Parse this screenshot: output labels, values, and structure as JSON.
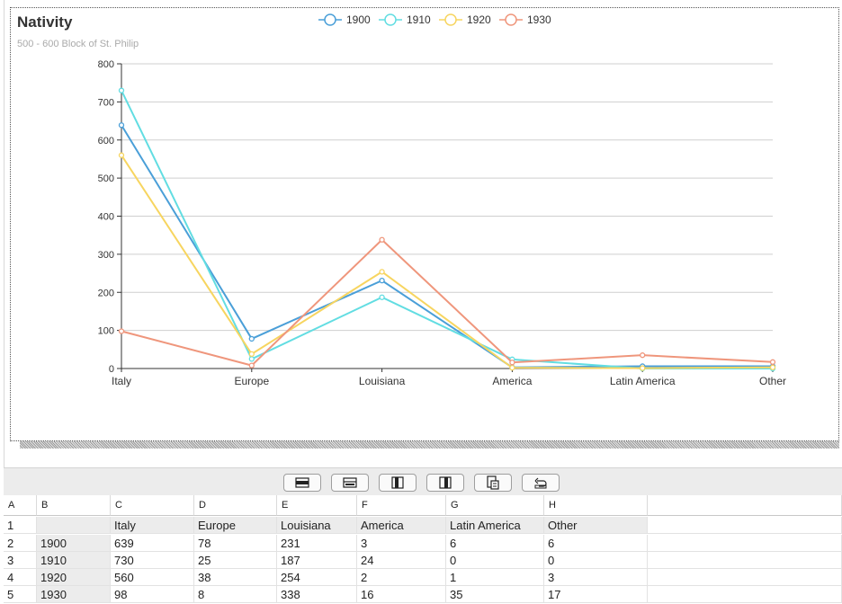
{
  "chart_data": {
    "type": "line",
    "title": "Nativity",
    "subtitle": "500 - 600 Block of St. Philip",
    "categories": [
      "Italy",
      "Europe",
      "Louisiana",
      "America",
      "Latin America",
      "Other"
    ],
    "ylim": [
      0,
      800
    ],
    "yticks": [
      0,
      100,
      200,
      300,
      400,
      500,
      600,
      700,
      800
    ],
    "grid": true,
    "legend_position": "top-center",
    "series": [
      {
        "name": "1900",
        "color": "#4a9fd8",
        "values": [
          639,
          78,
          231,
          3,
          6,
          6
        ]
      },
      {
        "name": "1910",
        "color": "#62dde2",
        "values": [
          730,
          25,
          187,
          24,
          0,
          0
        ]
      },
      {
        "name": "1920",
        "color": "#f7d560",
        "values": [
          560,
          38,
          254,
          2,
          1,
          3
        ]
      },
      {
        "name": "1930",
        "color": "#ef967c",
        "values": [
          98,
          8,
          338,
          16,
          35,
          17
        ]
      }
    ]
  },
  "toolbar": {
    "buttons": [
      "insert-row-above-icon",
      "insert-row-below-icon",
      "insert-column-left-icon",
      "insert-column-right-icon",
      "paste-transpose-icon",
      "undo-icon"
    ]
  },
  "sheet": {
    "column_letters": [
      "A",
      "B",
      "C",
      "D",
      "E",
      "F",
      "G",
      "H"
    ],
    "row_numbers": [
      "1",
      "2",
      "3",
      "4",
      "5"
    ],
    "rows": [
      [
        "",
        "Italy",
        "Europe",
        "Louisiana",
        "America",
        "Latin America",
        "Other"
      ],
      [
        "1900",
        "639",
        "78",
        "231",
        "3",
        "6",
        "6"
      ],
      [
        "1910",
        "730",
        "25",
        "187",
        "24",
        "0",
        "0"
      ],
      [
        "1920",
        "560",
        "38",
        "254",
        "2",
        "1",
        "3"
      ],
      [
        "1930",
        "98",
        "8",
        "338",
        "16",
        "35",
        "17"
      ]
    ]
  }
}
